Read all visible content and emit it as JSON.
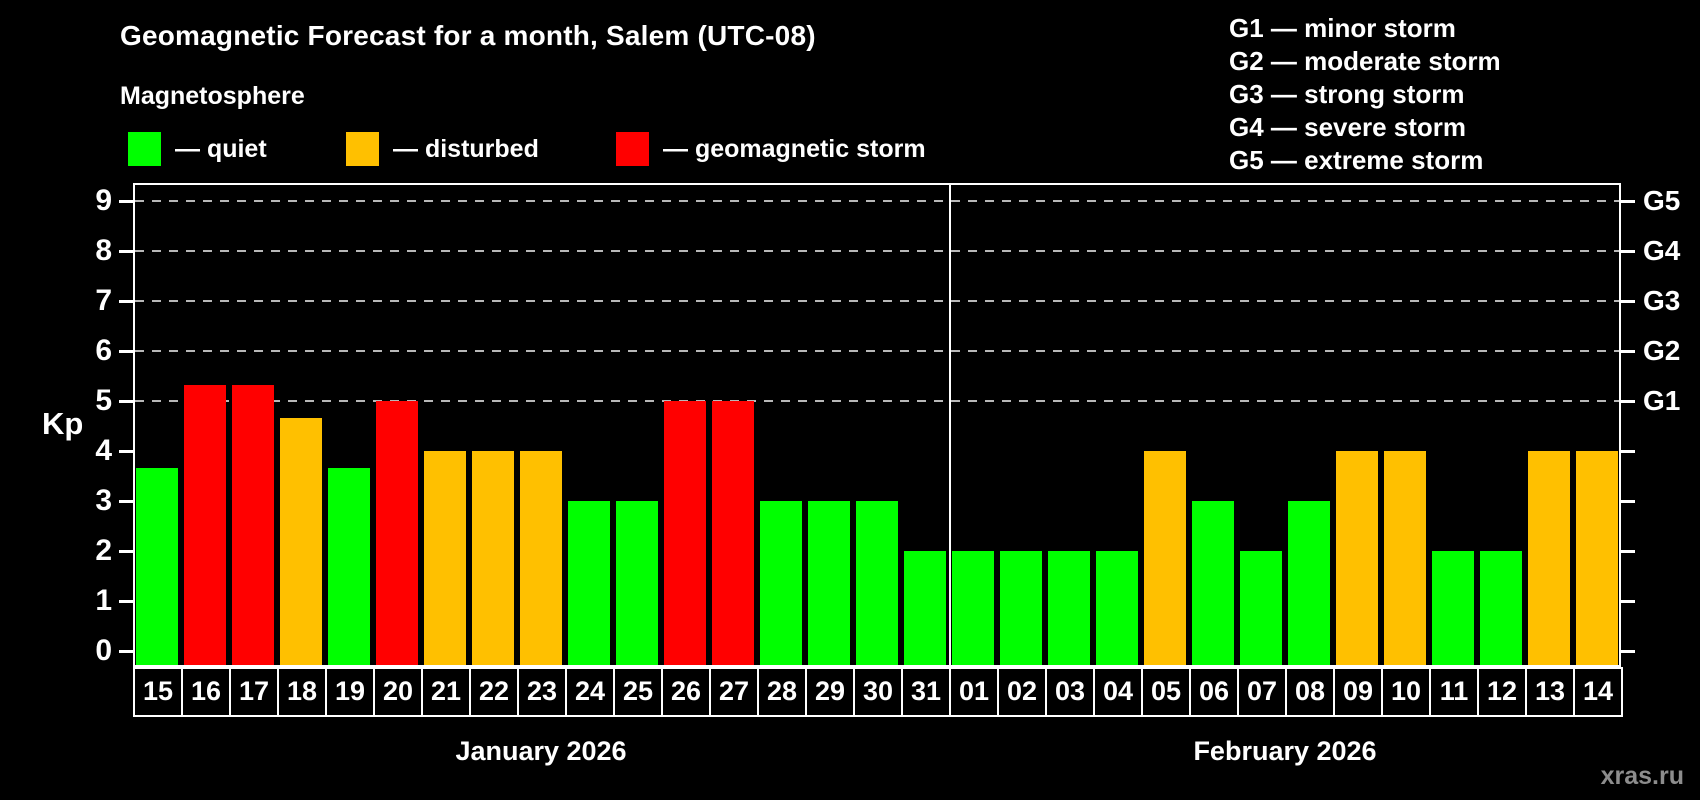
{
  "title": "Geomagnetic Forecast for a month, Salem (UTC-08)",
  "subtitle": "Magnetosphere",
  "legend": {
    "items": [
      {
        "key": "quiet",
        "label": "— quiet",
        "color": "#00ff00"
      },
      {
        "key": "disturbed",
        "label": "— disturbed",
        "color": "#ffc000"
      },
      {
        "key": "storm",
        "label": "— geomagnetic storm",
        "color": "#ff0000"
      }
    ]
  },
  "g_scale_legend": [
    "G1 — minor storm",
    "G2 — moderate storm",
    "G3 — strong storm",
    "G4 — severe storm",
    "G5 — extreme storm"
  ],
  "watermark": "xras.ru",
  "chart_data": {
    "type": "bar",
    "ylabel": "Kp",
    "ylim": [
      0,
      9
    ],
    "yticks": [
      0,
      1,
      2,
      3,
      4,
      5,
      6,
      7,
      8,
      9
    ],
    "gridlines_at": [
      5,
      6,
      7,
      8,
      9
    ],
    "grid_style": "dashed horizontal lines only at storm levels G1-G5",
    "right_axis_labels": [
      {
        "kp": 5,
        "label": "G1"
      },
      {
        "kp": 6,
        "label": "G2"
      },
      {
        "kp": 7,
        "label": "G3"
      },
      {
        "kp": 8,
        "label": "G4"
      },
      {
        "kp": 9,
        "label": "G5"
      }
    ],
    "months": [
      {
        "label": "January 2026",
        "num_days": 17
      },
      {
        "label": "February 2026",
        "num_days": 14
      }
    ],
    "categories": [
      "15",
      "16",
      "17",
      "18",
      "19",
      "20",
      "21",
      "22",
      "23",
      "24",
      "25",
      "26",
      "27",
      "28",
      "29",
      "30",
      "31",
      "01",
      "02",
      "03",
      "04",
      "05",
      "06",
      "07",
      "08",
      "09",
      "10",
      "11",
      "12",
      "13",
      "14"
    ],
    "values": [
      3.67,
      5.33,
      5.33,
      4.67,
      3.67,
      5,
      4,
      4,
      4,
      3,
      3,
      5,
      5,
      3,
      3,
      3,
      2,
      2,
      2,
      2,
      2,
      4,
      3,
      2,
      3,
      4,
      4,
      2,
      2,
      4,
      4
    ],
    "statuses": [
      "quiet",
      "storm",
      "storm",
      "disturbed",
      "quiet",
      "storm",
      "disturbed",
      "disturbed",
      "disturbed",
      "quiet",
      "quiet",
      "storm",
      "storm",
      "quiet",
      "quiet",
      "quiet",
      "quiet",
      "quiet",
      "quiet",
      "quiet",
      "quiet",
      "disturbed",
      "quiet",
      "quiet",
      "quiet",
      "disturbed",
      "disturbed",
      "quiet",
      "quiet",
      "disturbed",
      "disturbed"
    ],
    "colors": {
      "quiet": "#00ff00",
      "disturbed": "#ffc000",
      "storm": "#ff0000"
    }
  }
}
